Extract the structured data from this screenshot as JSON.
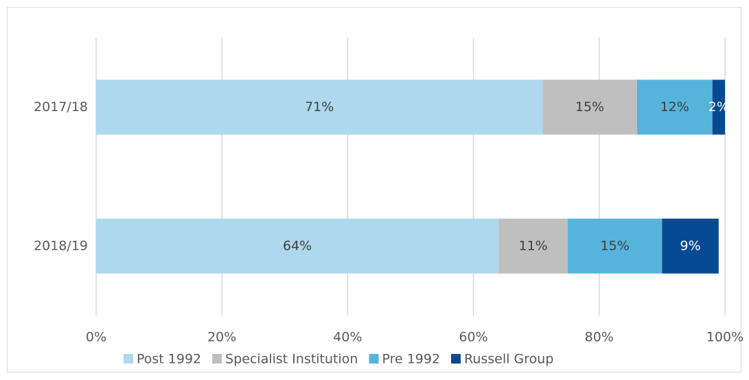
{
  "chart_data": {
    "type": "stacked_bar_horizontal",
    "categories": [
      "2017/18",
      "2018/19"
    ],
    "series": [
      {
        "name": "Post 1992",
        "color": "#add8ee",
        "values": [
          71,
          64
        ],
        "value_labels": [
          "71%",
          "64%"
        ]
      },
      {
        "name": "Specialist Institution",
        "color": "#bfbfbf",
        "values": [
          15,
          11
        ],
        "value_labels": [
          "15%",
          "11%"
        ]
      },
      {
        "name": "Pre 1992",
        "color": "#56b4dc",
        "values": [
          12,
          15
        ],
        "value_labels": [
          "12%",
          "15%"
        ]
      },
      {
        "name": "Russell Group",
        "color": "#074a94",
        "values": [
          2,
          9
        ],
        "value_labels": [
          "2%",
          "9%"
        ]
      }
    ],
    "xlim": [
      0,
      100
    ],
    "xticks": [
      {
        "value": 0,
        "label": "0%"
      },
      {
        "value": 20,
        "label": "20%"
      },
      {
        "value": 40,
        "label": "40%"
      },
      {
        "value": 60,
        "label": "60%"
      },
      {
        "value": 80,
        "label": "80%"
      },
      {
        "value": 100,
        "label": "100%"
      }
    ],
    "grid": true,
    "legend": "bottom"
  }
}
